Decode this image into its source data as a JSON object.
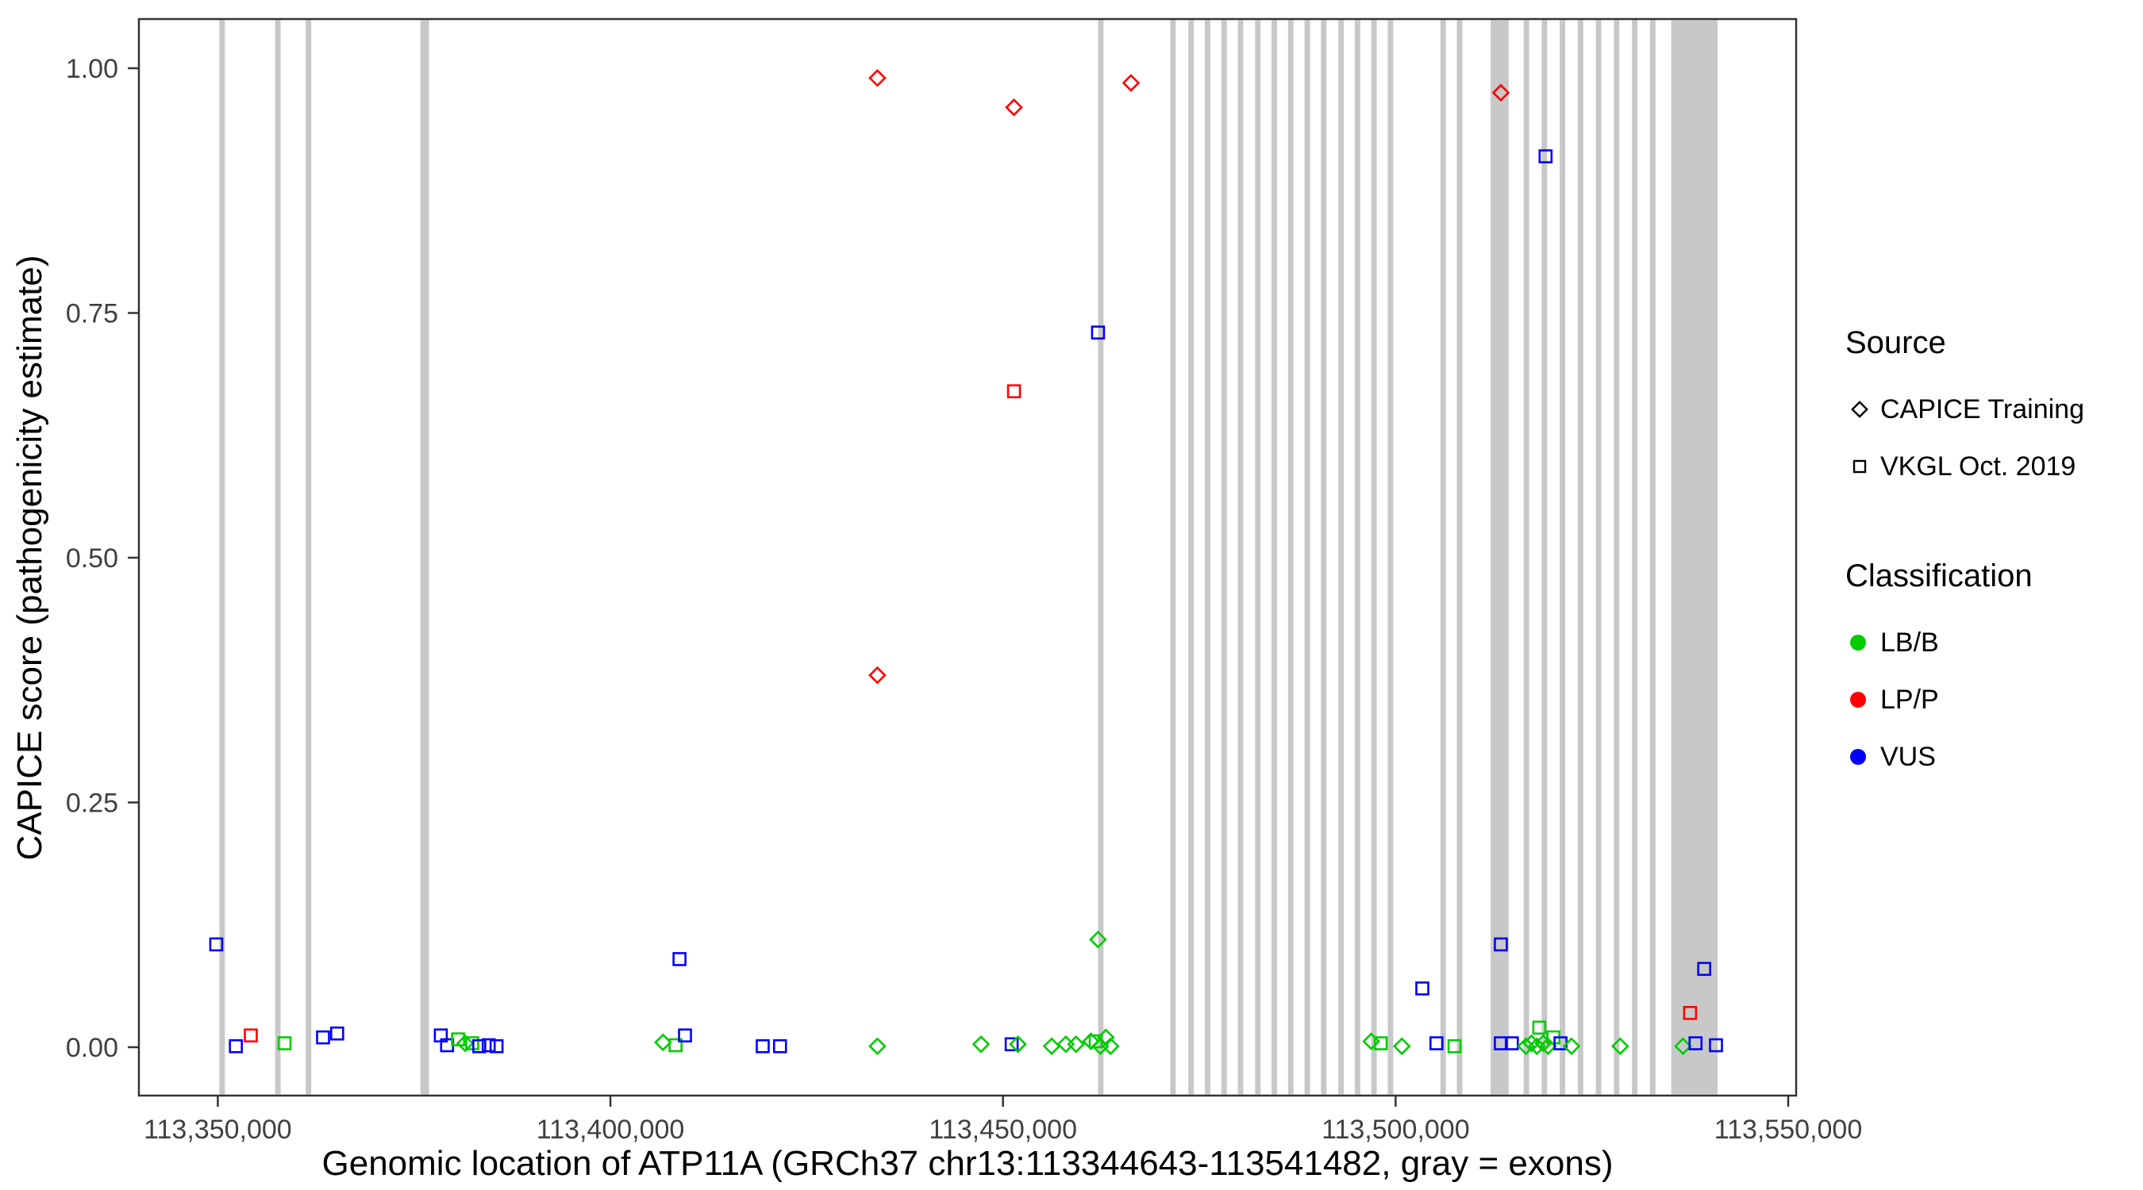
{
  "figure": {
    "background": "#FFFFFF",
    "panel_border_color": "#333333",
    "tick_color": "#333333"
  },
  "chart_data": {
    "type": "scatter",
    "title": "",
    "xlabel": "Genomic location of ATP11A (GRCh37 chr13:113344643-113541482, gray = exons)",
    "ylabel": "CAPICE score (pathogenicity estimate)",
    "xlim": [
      113339950,
      113551011
    ],
    "ylim": [
      0,
      1
    ],
    "grid": "off",
    "legend_position": "right",
    "x_ticks": [
      {
        "value": 113350000,
        "label": "113,350,000"
      },
      {
        "value": 113400000,
        "label": "113,400,000"
      },
      {
        "value": 113450000,
        "label": "113,450,000"
      },
      {
        "value": 113500000,
        "label": "113,500,000"
      },
      {
        "value": 113550000,
        "label": "113,550,000"
      }
    ],
    "y_ticks": [
      {
        "value": 0.0,
        "label": "0.00"
      },
      {
        "value": 0.25,
        "label": "0.25"
      },
      {
        "value": 0.5,
        "label": "0.50"
      },
      {
        "value": 0.75,
        "label": "0.75"
      },
      {
        "value": 1.0,
        "label": "1.00"
      }
    ],
    "exon_color": "#C8C8C8",
    "exons": [
      [
        113350200,
        113350900
      ],
      [
        113357300,
        113358000
      ],
      [
        113361200,
        113361900
      ],
      [
        113375800,
        113376900
      ],
      [
        113462100,
        113462800
      ],
      [
        113471300,
        113472000
      ],
      [
        113473600,
        113474300
      ],
      [
        113475700,
        113476400
      ],
      [
        113477800,
        113478500
      ],
      [
        113479900,
        113480600
      ],
      [
        113482100,
        113482800
      ],
      [
        113484200,
        113484900
      ],
      [
        113486300,
        113487000
      ],
      [
        113488400,
        113489100
      ],
      [
        113490500,
        113491200
      ],
      [
        113492700,
        113493400
      ],
      [
        113494800,
        113495500
      ],
      [
        113496900,
        113497600
      ],
      [
        113499000,
        113499700
      ],
      [
        113505700,
        113506400
      ],
      [
        113507800,
        113508500
      ],
      [
        113512100,
        113514400
      ],
      [
        113516300,
        113517000
      ],
      [
        113518600,
        113519300
      ],
      [
        113520900,
        113521600
      ],
      [
        113523200,
        113523900
      ],
      [
        113525500,
        113526200
      ],
      [
        113527800,
        113528500
      ],
      [
        113530100,
        113530800
      ],
      [
        113532400,
        113533100
      ],
      [
        113535100,
        113541000
      ]
    ],
    "classification_colors": {
      "LB/B": "#00CC00",
      "LP/P": "#FF0000",
      "VUS": "#0000FF"
    },
    "source_shapes": {
      "CAPICE Training": "diamond",
      "VKGL Oct. 2019": "square"
    },
    "points": [
      {
        "x": 113434000,
        "y": 0.99,
        "source": "CAPICE Training",
        "classification": "LP/P"
      },
      {
        "x": 113451400,
        "y": 0.96,
        "source": "CAPICE Training",
        "classification": "LP/P"
      },
      {
        "x": 113466300,
        "y": 0.985,
        "source": "CAPICE Training",
        "classification": "LP/P"
      },
      {
        "x": 113513400,
        "y": 0.975,
        "source": "CAPICE Training",
        "classification": "LP/P"
      },
      {
        "x": 113434000,
        "y": 0.38,
        "source": "CAPICE Training",
        "classification": "LP/P"
      },
      {
        "x": 113451400,
        "y": 0.67,
        "source": "VKGL Oct. 2019",
        "classification": "LP/P"
      },
      {
        "x": 113537500,
        "y": 0.035,
        "source": "VKGL Oct. 2019",
        "classification": "LP/P"
      },
      {
        "x": 113354200,
        "y": 0.012,
        "source": "VKGL Oct. 2019",
        "classification": "LP/P"
      },
      {
        "x": 113462100,
        "y": 0.73,
        "source": "VKGL Oct. 2019",
        "classification": "VUS"
      },
      {
        "x": 113519100,
        "y": 0.91,
        "source": "VKGL Oct. 2019",
        "classification": "VUS"
      },
      {
        "x": 113349800,
        "y": 0.105,
        "source": "VKGL Oct. 2019",
        "classification": "VUS"
      },
      {
        "x": 113408800,
        "y": 0.09,
        "source": "VKGL Oct. 2019",
        "classification": "VUS"
      },
      {
        "x": 113513400,
        "y": 0.105,
        "source": "VKGL Oct. 2019",
        "classification": "VUS"
      },
      {
        "x": 113503400,
        "y": 0.06,
        "source": "VKGL Oct. 2019",
        "classification": "VUS"
      },
      {
        "x": 113539300,
        "y": 0.08,
        "source": "VKGL Oct. 2019",
        "classification": "VUS"
      },
      {
        "x": 113462100,
        "y": 0.11,
        "source": "CAPICE Training",
        "classification": "LB/B"
      },
      {
        "x": 113352300,
        "y": 0.001,
        "source": "VKGL Oct. 2019",
        "classification": "VUS"
      },
      {
        "x": 113358500,
        "y": 0.004,
        "source": "VKGL Oct. 2019",
        "classification": "LB/B"
      },
      {
        "x": 113363400,
        "y": 0.01,
        "source": "VKGL Oct. 2019",
        "classification": "VUS"
      },
      {
        "x": 113365200,
        "y": 0.014,
        "source": "VKGL Oct. 2019",
        "classification": "VUS"
      },
      {
        "x": 113378400,
        "y": 0.012,
        "source": "VKGL Oct. 2019",
        "classification": "VUS"
      },
      {
        "x": 113379200,
        "y": 0.002,
        "source": "VKGL Oct. 2019",
        "classification": "VUS"
      },
      {
        "x": 113380600,
        "y": 0.008,
        "source": "VKGL Oct. 2019",
        "classification": "LB/B"
      },
      {
        "x": 113381500,
        "y": 0.004,
        "source": "CAPICE Training",
        "classification": "LB/B"
      },
      {
        "x": 113382400,
        "y": 0.004,
        "source": "VKGL Oct. 2019",
        "classification": "LB/B"
      },
      {
        "x": 113383300,
        "y": 0.001,
        "source": "VKGL Oct. 2019",
        "classification": "VUS"
      },
      {
        "x": 113384500,
        "y": 0.002,
        "source": "VKGL Oct. 2019",
        "classification": "VUS"
      },
      {
        "x": 113385500,
        "y": 0.001,
        "source": "VKGL Oct. 2019",
        "classification": "VUS"
      },
      {
        "x": 113406700,
        "y": 0.005,
        "source": "CAPICE Training",
        "classification": "LB/B"
      },
      {
        "x": 113408300,
        "y": 0.002,
        "source": "VKGL Oct. 2019",
        "classification": "LB/B"
      },
      {
        "x": 113409500,
        "y": 0.012,
        "source": "VKGL Oct. 2019",
        "classification": "VUS"
      },
      {
        "x": 113419400,
        "y": 0.001,
        "source": "VKGL Oct. 2019",
        "classification": "VUS"
      },
      {
        "x": 113421600,
        "y": 0.001,
        "source": "VKGL Oct. 2019",
        "classification": "VUS"
      },
      {
        "x": 113434000,
        "y": 0.001,
        "source": "CAPICE Training",
        "classification": "LB/B"
      },
      {
        "x": 113447200,
        "y": 0.003,
        "source": "CAPICE Training",
        "classification": "LB/B"
      },
      {
        "x": 113451100,
        "y": 0.003,
        "source": "VKGL Oct. 2019",
        "classification": "VUS"
      },
      {
        "x": 113451900,
        "y": 0.003,
        "source": "CAPICE Training",
        "classification": "LB/B"
      },
      {
        "x": 113456200,
        "y": 0.001,
        "source": "CAPICE Training",
        "classification": "LB/B"
      },
      {
        "x": 113458000,
        "y": 0.003,
        "source": "CAPICE Training",
        "classification": "LB/B"
      },
      {
        "x": 113459300,
        "y": 0.003,
        "source": "CAPICE Training",
        "classification": "LB/B"
      },
      {
        "x": 113461200,
        "y": 0.006,
        "source": "CAPICE Training",
        "classification": "LB/B"
      },
      {
        "x": 113461800,
        "y": 0.006,
        "source": "VKGL Oct. 2019",
        "classification": "LB/B"
      },
      {
        "x": 113462400,
        "y": 0.001,
        "source": "CAPICE Training",
        "classification": "LB/B"
      },
      {
        "x": 113463100,
        "y": 0.01,
        "source": "CAPICE Training",
        "classification": "LB/B"
      },
      {
        "x": 113463700,
        "y": 0.001,
        "source": "CAPICE Training",
        "classification": "LB/B"
      },
      {
        "x": 113496900,
        "y": 0.006,
        "source": "CAPICE Training",
        "classification": "LB/B"
      },
      {
        "x": 113498100,
        "y": 0.004,
        "source": "VKGL Oct. 2019",
        "classification": "LB/B"
      },
      {
        "x": 113500800,
        "y": 0.001,
        "source": "CAPICE Training",
        "classification": "LB/B"
      },
      {
        "x": 113505200,
        "y": 0.004,
        "source": "VKGL Oct. 2019",
        "classification": "VUS"
      },
      {
        "x": 113507500,
        "y": 0.001,
        "source": "VKGL Oct. 2019",
        "classification": "LB/B"
      },
      {
        "x": 113513400,
        "y": 0.004,
        "source": "VKGL Oct. 2019",
        "classification": "VUS"
      },
      {
        "x": 113514800,
        "y": 0.004,
        "source": "VKGL Oct. 2019",
        "classification": "VUS"
      },
      {
        "x": 113516600,
        "y": 0.001,
        "source": "CAPICE Training",
        "classification": "LB/B"
      },
      {
        "x": 113517300,
        "y": 0.004,
        "source": "CAPICE Training",
        "classification": "LB/B"
      },
      {
        "x": 113518000,
        "y": 0.001,
        "source": "CAPICE Training",
        "classification": "LB/B"
      },
      {
        "x": 113518300,
        "y": 0.02,
        "source": "VKGL Oct. 2019",
        "classification": "LB/B"
      },
      {
        "x": 113518800,
        "y": 0.004,
        "source": "CAPICE Training",
        "classification": "LB/B"
      },
      {
        "x": 113519400,
        "y": 0.001,
        "source": "CAPICE Training",
        "classification": "LB/B"
      },
      {
        "x": 113520100,
        "y": 0.01,
        "source": "VKGL Oct. 2019",
        "classification": "LB/B"
      },
      {
        "x": 113521000,
        "y": 0.004,
        "source": "VKGL Oct. 2019",
        "classification": "VUS"
      },
      {
        "x": 113522400,
        "y": 0.001,
        "source": "CAPICE Training",
        "classification": "LB/B"
      },
      {
        "x": 113528600,
        "y": 0.001,
        "source": "CAPICE Training",
        "classification": "LB/B"
      },
      {
        "x": 113536600,
        "y": 0.001,
        "source": "CAPICE Training",
        "classification": "LB/B"
      },
      {
        "x": 113538200,
        "y": 0.004,
        "source": "VKGL Oct. 2019",
        "classification": "VUS"
      },
      {
        "x": 113540800,
        "y": 0.002,
        "source": "VKGL Oct. 2019",
        "classification": "VUS"
      }
    ]
  },
  "legend": {
    "source_title": "Source",
    "source_items": [
      {
        "label": "CAPICE Training",
        "shape": "diamond"
      },
      {
        "label": "VKGL Oct. 2019",
        "shape": "square"
      }
    ],
    "classification_title": "Classification",
    "classification_items": [
      {
        "label": "LB/B",
        "color": "#00CC00"
      },
      {
        "label": "LP/P",
        "color": "#FF0000"
      },
      {
        "label": "VUS",
        "color": "#0000FF"
      }
    ]
  }
}
